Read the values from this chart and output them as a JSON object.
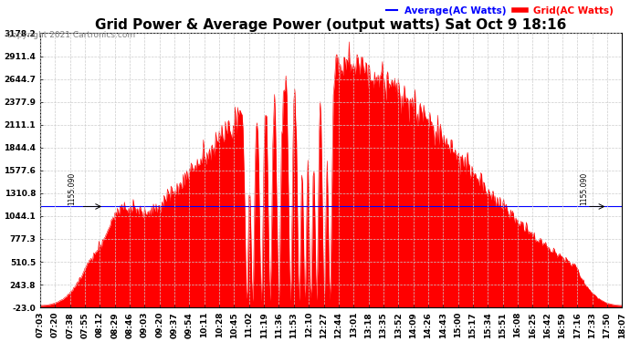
{
  "title": "Grid Power & Average Power (output watts) Sat Oct 9 18:16",
  "copyright": "Copyright 2021 Cartronics.com",
  "legend_avg": "Average(AC Watts)",
  "legend_grid": "Grid(AC Watts)",
  "avg_color": "#0000ff",
  "grid_color": "#ff0000",
  "background_color": "#ffffff",
  "annotation_value": 1155.09,
  "annotation_label": "1155.090",
  "yticks": [
    3178.2,
    2911.4,
    2644.7,
    2377.9,
    2111.1,
    1844.4,
    1577.6,
    1310.8,
    1044.1,
    777.3,
    510.5,
    243.8,
    -23.0
  ],
  "ylim": [
    -23.0,
    3178.2
  ],
  "xtick_labels": [
    "07:03",
    "07:20",
    "07:38",
    "07:55",
    "08:12",
    "08:29",
    "08:46",
    "09:03",
    "09:20",
    "09:37",
    "09:54",
    "10:11",
    "10:28",
    "10:45",
    "11:02",
    "11:19",
    "11:36",
    "11:53",
    "12:10",
    "12:27",
    "12:44",
    "13:01",
    "13:18",
    "13:35",
    "13:52",
    "14:09",
    "14:26",
    "14:43",
    "15:00",
    "15:17",
    "15:34",
    "15:51",
    "16:08",
    "16:25",
    "16:42",
    "16:59",
    "17:16",
    "17:33",
    "17:50",
    "18:07"
  ],
  "title_fontsize": 11,
  "tick_fontsize": 6.5,
  "copyright_fontsize": 6.5,
  "legend_fontsize": 7.5,
  "grid_color_style": "#cccccc",
  "grid_linestyle": "--"
}
